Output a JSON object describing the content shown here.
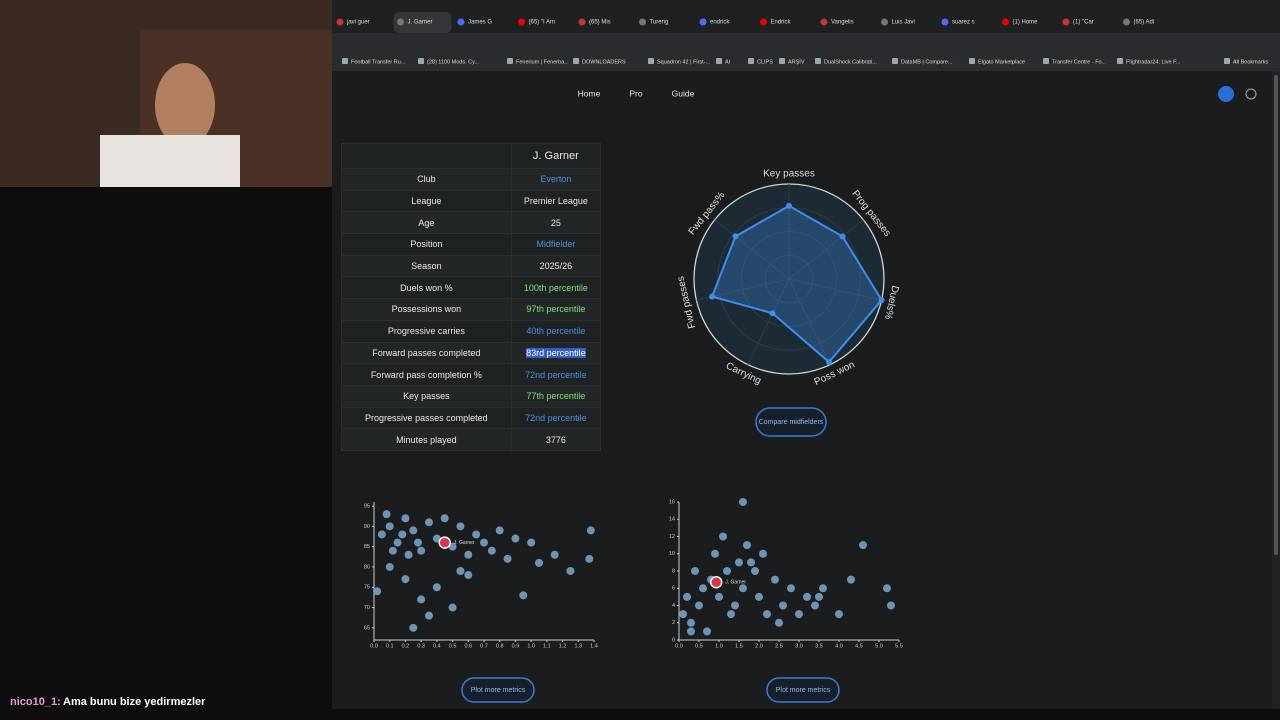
{
  "browser": {
    "tabs": [
      "javi guer",
      "J. Garner",
      "James G",
      "(65) \"I Am",
      "(65) Mis",
      "Tureng",
      "endrick",
      "Endrick",
      "Vangelis",
      "Luis Javi",
      "suarez s",
      "(1) Home",
      "(1) \"Car",
      "(65) Adi"
    ],
    "active_tab": 1,
    "bookmarks": [
      "Football Transfer Ru...",
      "(28) 1100 Mods. Cy...",
      "Fenerium | Fenerba...",
      "DOWNLOADERS",
      "Squadron 42 | First-...",
      "AI",
      "CLIPS",
      "ARŞİV",
      "DualShock Calibrati...",
      "DataMB | Compare...",
      "Elgato Marketplace",
      "Transfer Centre - Fo...",
      "Flightradar24: Live F...",
      "All Bookmarks"
    ]
  },
  "nav": [
    "Home",
    "Pro",
    "Guide"
  ],
  "table": {
    "header": "J. Garner",
    "rows": [
      {
        "label": "Club",
        "value": "Everton",
        "color": "#4a90e2"
      },
      {
        "label": "League",
        "value": "Premier League",
        "color": "#e8e8e8"
      },
      {
        "label": "Age",
        "value": "25",
        "color": "#e8e8e8"
      },
      {
        "label": "Position",
        "value": "Midfielder",
        "color": "#4a90e2"
      },
      {
        "label": "Season",
        "value": "2025/26",
        "color": "#e8e8e8"
      },
      {
        "label": "Duels won %",
        "value": "100th percentile",
        "color": "#7ee07e"
      },
      {
        "label": "Possessions won",
        "value": "97th percentile",
        "color": "#7ee07e"
      },
      {
        "label": "Progressive carries",
        "value": "40th percentile",
        "color": "#4a90e2"
      },
      {
        "label": "Forward passes completed",
        "value": "83rd percentile",
        "color": "#ffffff"
      },
      {
        "label": "Forward pass completion %",
        "value": "72nd percentile",
        "color": "#4a90e2"
      },
      {
        "label": "Key passes",
        "value": "77th percentile",
        "color": "#7ee07e"
      },
      {
        "label": "Progressive passes completed",
        "value": "72nd percentile",
        "color": "#4a90e2"
      },
      {
        "label": "Minutes played",
        "value": "3776",
        "color": "#e8e8e8"
      }
    ]
  },
  "radar": {
    "labels": [
      "Key passes",
      "Prog passes",
      "Duels%",
      "Poss won",
      "Carrying",
      "Fwd passes",
      "Fwd pass%"
    ],
    "values": [
      77,
      72,
      100,
      97,
      40,
      83,
      72
    ],
    "rlim": [
      0,
      100
    ],
    "color": "#3d8ef0"
  },
  "compare_button": "Compare midfielders",
  "scatters": [
    {
      "type": "scatter",
      "color": "#7fb3dd",
      "x": [
        0.05,
        0.1,
        0.15,
        0.2,
        0.25,
        0.3,
        0.35,
        0.4,
        0.5,
        0.55,
        0.6,
        0.65,
        0.7,
        0.75,
        0.8,
        0.85,
        0.9,
        1.0,
        1.05,
        1.15,
        1.25,
        1.37,
        1.38,
        0.1,
        0.2,
        0.3,
        0.35,
        0.25,
        0.4,
        0.5,
        0.6,
        0.95,
        0.02,
        0.45,
        0.55,
        0.12,
        0.18,
        0.28,
        0.08,
        0.22
      ],
      "y": [
        88,
        90,
        86,
        92,
        89,
        84,
        91,
        87,
        85,
        90,
        83,
        88,
        86,
        84,
        89,
        82,
        87,
        86,
        81,
        83,
        79,
        82,
        89,
        80,
        77,
        72,
        68,
        65,
        75,
        70,
        78,
        73,
        74,
        92,
        79,
        84,
        88,
        86,
        93,
        83
      ],
      "highlight": {
        "label": "J. Garner",
        "x": 0.45,
        "y": 86
      },
      "xlim": [
        0,
        1.4
      ],
      "ylim": [
        62,
        96
      ],
      "xticks": [
        {
          "value": 0,
          "label": "0.0"
        },
        0.1,
        0.2,
        0.3,
        0.4,
        0.5,
        0.6,
        0.7,
        0.8,
        0.9,
        {
          "value": 1,
          "label": "1.0"
        },
        1.1,
        1.2,
        1.3,
        1.4
      ],
      "yticks": [
        65,
        70,
        75,
        80,
        85,
        90,
        95
      ],
      "button": "Plot more metrics"
    },
    {
      "type": "scatter",
      "color": "#7fb3dd",
      "x": [
        0.1,
        0.2,
        0.3,
        0.5,
        0.6,
        0.8,
        1.0,
        1.2,
        1.4,
        1.6,
        1.8,
        2.0,
        2.2,
        2.4,
        2.6,
        2.8,
        3.0,
        3.2,
        3.4,
        3.6,
        4.0,
        4.3,
        4.6,
        5.2,
        5.3,
        0.4,
        0.9,
        1.1,
        1.5,
        1.7,
        0.7,
        1.3,
        2.5,
        0.3,
        1.9,
        1.6,
        3.5,
        2.1
      ],
      "y": [
        3,
        5,
        2,
        4,
        6,
        7,
        5,
        8,
        4,
        6,
        9,
        5,
        3,
        7,
        4,
        6,
        3,
        5,
        4,
        6,
        3,
        7,
        11,
        6,
        4,
        8,
        10,
        12,
        9,
        11,
        1,
        3,
        2,
        1,
        8,
        16,
        5,
        10
      ],
      "highlight": {
        "label": "J. Garner",
        "x": 0.93,
        "y": 6.7
      },
      "xlim": [
        0,
        5.5
      ],
      "ylim": [
        0,
        16
      ],
      "xticks": [
        {
          "value": 0,
          "label": "0.0"
        },
        0.5,
        {
          "value": 1,
          "label": "1.0"
        },
        1.5,
        {
          "value": 2,
          "label": "2.0"
        },
        2.5,
        {
          "value": 3,
          "label": "3.0"
        },
        3.5,
        {
          "value": 4,
          "label": "4.0"
        },
        4.5,
        {
          "value": 5,
          "label": "5.0"
        },
        5.5
      ],
      "yticks": [
        0,
        2,
        4,
        6,
        8,
        10,
        12,
        14,
        16
      ],
      "button": "Plot more metrics"
    }
  ],
  "chat": {
    "user": "nico10_1:",
    "message": "Ama bunu bize yedirmezler"
  }
}
